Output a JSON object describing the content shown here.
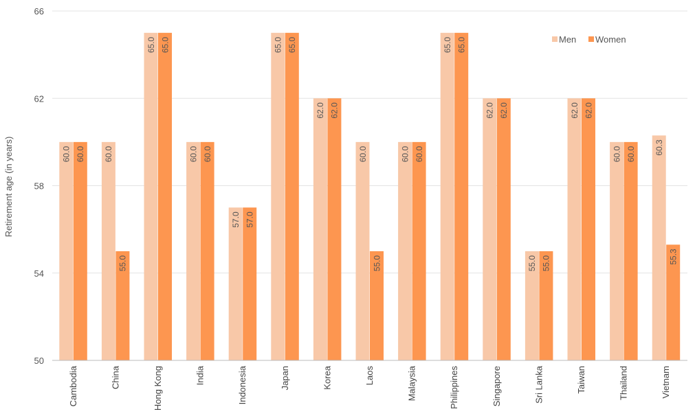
{
  "chart_data": {
    "type": "bar",
    "ylabel": "Retirement age (in years)",
    "ylim": [
      50,
      66
    ],
    "yticks": [
      50,
      54,
      58,
      62,
      66
    ],
    "grid": true,
    "legend_position": "top-right",
    "categories": [
      "Cambodia",
      "China",
      "Hong Kong",
      "India",
      "Indonesia",
      "Japan",
      "Korea",
      "Laos",
      "Malaysia",
      "Philippines",
      "Singapore",
      "Sri Lanka",
      "Taiwan",
      "Thailand",
      "Vietnam"
    ],
    "series": [
      {
        "name": "Men",
        "color": "#f8c8a8",
        "values": [
          60.0,
          60.0,
          65.0,
          60.0,
          57.0,
          65.0,
          62.0,
          60.0,
          60.0,
          65.0,
          62.0,
          55.0,
          62.0,
          60.0,
          60.3
        ],
        "labels": [
          "60.0",
          "60.0",
          "65.0",
          "60.0",
          "57.0",
          "65.0",
          "62.0",
          "60.0",
          "60.0",
          "65.0",
          "62.0",
          "55.0",
          "62.0",
          "60.0",
          "60.3"
        ]
      },
      {
        "name": "Women",
        "color": "#fd9650",
        "values": [
          60.0,
          55.0,
          65.0,
          60.0,
          57.0,
          65.0,
          62.0,
          55.0,
          60.0,
          65.0,
          62.0,
          55.0,
          62.0,
          60.0,
          55.3
        ],
        "labels": [
          "60.0",
          "55.0",
          "65.0",
          "60.0",
          "57.0",
          "65.0",
          "62.0",
          "55.0",
          "60.0",
          "65.0",
          "62.0",
          "55.0",
          "62.0",
          "60.0",
          "55.3"
        ]
      }
    ]
  }
}
